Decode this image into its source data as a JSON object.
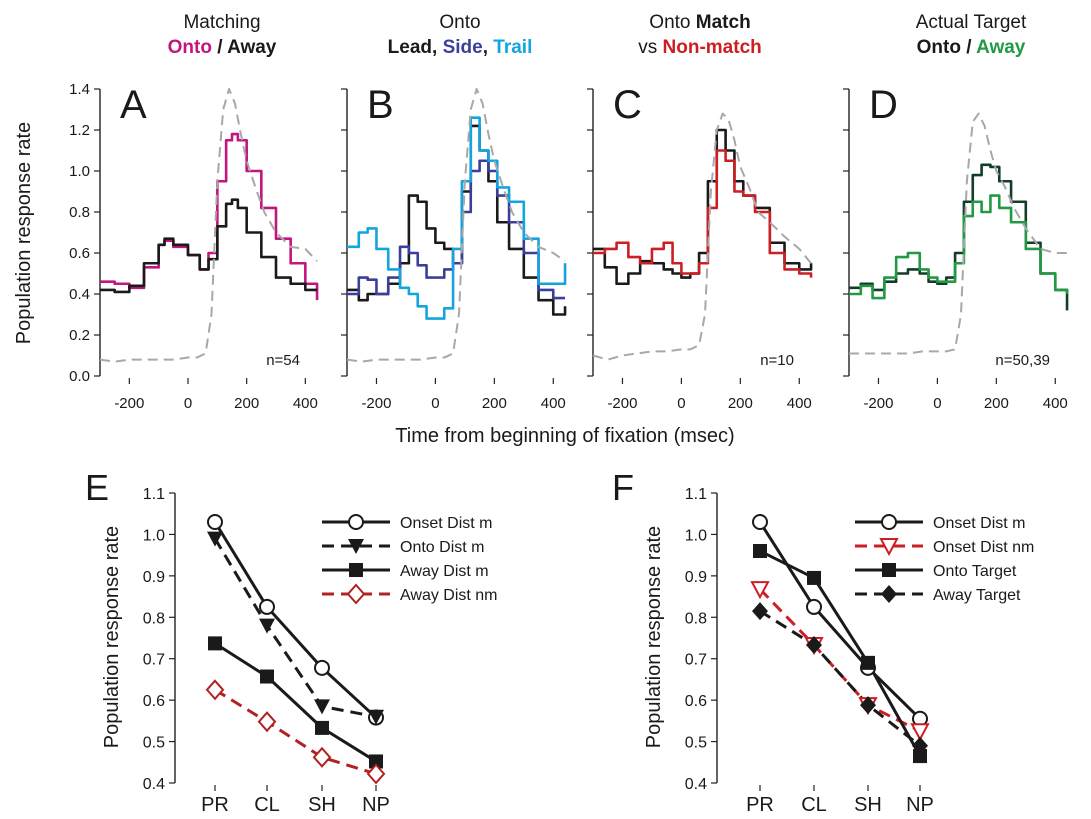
{
  "shared": {
    "xlabel": "Time from beginning of fixation (msec)",
    "ylabel_top": "Population response rate",
    "top_yticks": [
      "0.0",
      "0.2",
      "0.4",
      "0.6",
      "0.8",
      "1.0",
      "1.2",
      "1.4"
    ],
    "top_xticks": [
      "-200",
      "0",
      "200",
      "400"
    ],
    "ylabel_bottom": "Population response rate",
    "bottom_yticks": [
      "0.4",
      "0.5",
      "0.6",
      "0.7",
      "0.8",
      "0.9",
      "1.0",
      "1.1"
    ]
  },
  "panels": [
    {
      "letter": "A",
      "title_line1": "Matching",
      "parts": [
        {
          "text": "Onto",
          "color": "#c2157e"
        },
        {
          "text": " / ",
          "color": "#1a1a1a"
        },
        {
          "text": "Away",
          "color": "#1a1a1a"
        }
      ],
      "n_label": "n=54"
    },
    {
      "letter": "B",
      "title_line1": "Onto",
      "parts": [
        {
          "text": "Lead",
          "color": "#1a1a1a"
        },
        {
          "text": ", ",
          "color": "#1a1a1a"
        },
        {
          "text": "Side",
          "color": "#3a3f9a"
        },
        {
          "text": ", ",
          "color": "#1a1a1a"
        },
        {
          "text": "Trail",
          "color": "#14a5e0"
        }
      ],
      "n_label": ""
    },
    {
      "letter": "C",
      "title_line1_plain": "Onto ",
      "title_line1_bold": "Match",
      "title_line2_plain": "vs ",
      "parts": [
        {
          "text": "Non-match",
          "color": "#cc1f24"
        }
      ],
      "n_label": "n=10"
    },
    {
      "letter": "D",
      "title_line1": "Actual Target",
      "parts": [
        {
          "text": "Onto /",
          "color": "#1a1a1a"
        },
        {
          "text": "  Away",
          "color": "#229944"
        }
      ],
      "n_label": "n=50,39"
    }
  ],
  "chart_data": [
    {
      "type": "line",
      "panel": "A",
      "xlim": [
        -300,
        450
      ],
      "ylim": [
        0,
        1.4
      ],
      "xlabel": "Time from beginning of fixation (msec)",
      "ylabel": "Population response rate",
      "series": [
        {
          "name": "Onto",
          "color": "#c2157e",
          "style": "step",
          "x": [
            -300,
            -250,
            -200,
            -150,
            -100,
            -80,
            -50,
            0,
            40,
            70,
            100,
            130,
            150,
            170,
            200,
            250,
            300,
            350,
            400,
            440
          ],
          "y": [
            0.46,
            0.45,
            0.43,
            0.53,
            0.64,
            0.66,
            0.63,
            0.59,
            0.52,
            0.6,
            0.95,
            1.15,
            1.18,
            1.15,
            1.0,
            0.82,
            0.67,
            0.55,
            0.45,
            0.37
          ]
        },
        {
          "name": "Away",
          "color": "#1a1a1a",
          "style": "step",
          "x": [
            -300,
            -250,
            -200,
            -150,
            -100,
            -80,
            -50,
            0,
            40,
            70,
            100,
            130,
            150,
            170,
            200,
            250,
            300,
            350,
            400,
            440
          ],
          "y": [
            0.42,
            0.41,
            0.44,
            0.55,
            0.64,
            0.67,
            0.64,
            0.59,
            0.52,
            0.57,
            0.73,
            0.84,
            0.86,
            0.82,
            0.7,
            0.58,
            0.48,
            0.45,
            0.42,
            0.42
          ]
        },
        {
          "name": "",
          "color": "#a8a8a8",
          "style": "dashed",
          "x": [
            -300,
            -250,
            -200,
            -150,
            -100,
            -50,
            0,
            30,
            60,
            80,
            100,
            120,
            140,
            160,
            180,
            200,
            230,
            260,
            300,
            350,
            400,
            440
          ],
          "y": [
            0.08,
            0.07,
            0.08,
            0.08,
            0.08,
            0.08,
            0.09,
            0.09,
            0.11,
            0.3,
            0.95,
            1.3,
            1.4,
            1.33,
            1.18,
            1.05,
            0.92,
            0.8,
            0.7,
            0.63,
            0.62,
            0.56
          ]
        }
      ]
    },
    {
      "type": "line",
      "panel": "B",
      "xlim": [
        -300,
        450
      ],
      "ylim": [
        0,
        1.4
      ],
      "xlabel": "Time from beginning of fixation (msec)",
      "ylabel": "Population response rate",
      "series": [
        {
          "name": "Lead",
          "color": "#1a1a1a",
          "style": "step",
          "x": [
            -300,
            -260,
            -230,
            -200,
            -160,
            -120,
            -90,
            -60,
            -30,
            0,
            30,
            60,
            90,
            120,
            150,
            180,
            210,
            250,
            300,
            350,
            400,
            440
          ],
          "y": [
            0.42,
            0.37,
            0.4,
            0.4,
            0.45,
            0.55,
            0.88,
            0.85,
            0.72,
            0.65,
            0.62,
            0.55,
            0.9,
            1.22,
            1.1,
            0.95,
            0.75,
            0.62,
            0.48,
            0.37,
            0.3,
            0.34
          ]
        },
        {
          "name": "Side",
          "color": "#3a3f9a",
          "style": "step",
          "x": [
            -300,
            -260,
            -230,
            -200,
            -160,
            -120,
            -90,
            -60,
            -30,
            0,
            30,
            60,
            90,
            120,
            150,
            180,
            210,
            250,
            300,
            350,
            400,
            440
          ],
          "y": [
            0.4,
            0.48,
            0.47,
            0.4,
            0.48,
            0.63,
            0.6,
            0.54,
            0.48,
            0.48,
            0.52,
            0.55,
            0.8,
            1.0,
            1.05,
            1.0,
            0.88,
            0.75,
            0.6,
            0.42,
            0.38,
            0.38
          ]
        },
        {
          "name": "Trail",
          "color": "#14a5e0",
          "style": "step",
          "x": [
            -300,
            -260,
            -230,
            -200,
            -160,
            -120,
            -90,
            -60,
            -30,
            0,
            30,
            60,
            90,
            120,
            150,
            180,
            210,
            250,
            300,
            350,
            400,
            440
          ],
          "y": [
            0.63,
            0.7,
            0.72,
            0.62,
            0.52,
            0.43,
            0.4,
            0.34,
            0.28,
            0.28,
            0.33,
            0.62,
            0.95,
            1.26,
            1.1,
            1.05,
            0.92,
            0.85,
            0.67,
            0.45,
            0.45,
            0.55
          ]
        },
        {
          "name": "",
          "color": "#a8a8a8",
          "style": "dashed",
          "x": [
            -300,
            -250,
            -200,
            -150,
            -100,
            -50,
            0,
            30,
            60,
            80,
            100,
            120,
            140,
            160,
            180,
            200,
            230,
            260,
            300,
            350,
            400,
            440
          ],
          "y": [
            0.08,
            0.07,
            0.08,
            0.08,
            0.08,
            0.08,
            0.09,
            0.09,
            0.11,
            0.3,
            0.95,
            1.3,
            1.4,
            1.33,
            1.18,
            1.05,
            0.92,
            0.8,
            0.7,
            0.63,
            0.6,
            0.56
          ]
        }
      ]
    },
    {
      "type": "line",
      "panel": "C",
      "xlim": [
        -300,
        450
      ],
      "ylim": [
        0,
        1.4
      ],
      "xlabel": "Time from beginning of fixation (msec)",
      "ylabel": "Population response rate",
      "series": [
        {
          "name": "Match",
          "color": "#1a1a1a",
          "style": "step",
          "x": [
            -300,
            -260,
            -220,
            -180,
            -140,
            -100,
            -60,
            -30,
            0,
            30,
            60,
            90,
            120,
            150,
            180,
            210,
            250,
            300,
            350,
            400,
            440
          ],
          "y": [
            0.62,
            0.53,
            0.45,
            0.5,
            0.56,
            0.55,
            0.52,
            0.5,
            0.48,
            0.5,
            0.6,
            0.95,
            1.2,
            1.1,
            0.95,
            0.88,
            0.82,
            0.65,
            0.55,
            0.52,
            0.55
          ]
        },
        {
          "name": "Non-match",
          "color": "#cc1f24",
          "style": "step",
          "x": [
            -300,
            -260,
            -220,
            -180,
            -140,
            -100,
            -60,
            -30,
            0,
            30,
            60,
            90,
            120,
            150,
            180,
            210,
            250,
            300,
            350,
            400,
            440
          ],
          "y": [
            0.6,
            0.62,
            0.65,
            0.58,
            0.55,
            0.62,
            0.65,
            0.55,
            0.5,
            0.5,
            0.55,
            0.82,
            1.1,
            1.05,
            0.9,
            0.88,
            0.8,
            0.6,
            0.52,
            0.5,
            0.48
          ]
        },
        {
          "name": "",
          "color": "#a8a8a8",
          "style": "dashed",
          "x": [
            -300,
            -250,
            -200,
            -150,
            -100,
            -50,
            0,
            30,
            60,
            80,
            100,
            120,
            140,
            160,
            180,
            200,
            230,
            260,
            300,
            350,
            400,
            440
          ],
          "y": [
            0.1,
            0.08,
            0.1,
            0.11,
            0.12,
            0.12,
            0.13,
            0.13,
            0.15,
            0.3,
            0.9,
            1.2,
            1.28,
            1.25,
            1.15,
            1.02,
            0.92,
            0.8,
            0.75,
            0.68,
            0.62,
            0.55
          ]
        }
      ]
    },
    {
      "type": "line",
      "panel": "D",
      "xlim": [
        -300,
        450
      ],
      "ylim": [
        0,
        1.4
      ],
      "xlabel": "Time from beginning of fixation (msec)",
      "ylabel": "Population response rate",
      "series": [
        {
          "name": "Onto",
          "color": "#143d28",
          "style": "step",
          "x": [
            -300,
            -260,
            -220,
            -180,
            -140,
            -100,
            -60,
            -30,
            0,
            30,
            60,
            90,
            120,
            150,
            180,
            210,
            250,
            300,
            350,
            400,
            440
          ],
          "y": [
            0.43,
            0.45,
            0.42,
            0.46,
            0.5,
            0.52,
            0.5,
            0.46,
            0.45,
            0.48,
            0.6,
            0.85,
            0.98,
            1.03,
            1.02,
            0.95,
            0.85,
            0.65,
            0.5,
            0.42,
            0.32
          ]
        },
        {
          "name": "Away",
          "color": "#229944",
          "style": "step",
          "x": [
            -300,
            -260,
            -220,
            -180,
            -140,
            -100,
            -60,
            -30,
            0,
            30,
            60,
            90,
            120,
            150,
            180,
            210,
            250,
            300,
            350,
            400,
            440
          ],
          "y": [
            0.4,
            0.44,
            0.38,
            0.48,
            0.58,
            0.6,
            0.52,
            0.48,
            0.46,
            0.46,
            0.55,
            0.78,
            0.85,
            0.8,
            0.88,
            0.82,
            0.75,
            0.62,
            0.5,
            0.42,
            0.4
          ]
        },
        {
          "name": "",
          "color": "#a8a8a8",
          "style": "dashed",
          "x": [
            -300,
            -250,
            -200,
            -150,
            -100,
            -50,
            0,
            30,
            60,
            80,
            100,
            120,
            140,
            160,
            180,
            200,
            230,
            260,
            300,
            350,
            400,
            440
          ],
          "y": [
            0.11,
            0.11,
            0.11,
            0.11,
            0.11,
            0.12,
            0.12,
            0.12,
            0.13,
            0.3,
            0.95,
            1.24,
            1.28,
            1.22,
            1.1,
            1.0,
            0.92,
            0.82,
            0.72,
            0.62,
            0.6,
            0.6
          ]
        }
      ]
    },
    {
      "type": "line",
      "panel": "E",
      "categories": [
        "PR",
        "CL",
        "SH",
        "NP"
      ],
      "ylim": [
        0.4,
        1.1
      ],
      "ylabel": "Population response rate",
      "series": [
        {
          "name": "Onset Dist m",
          "color": "#1a1a1a",
          "dash": false,
          "marker": "circle-open",
          "values": [
            1.03,
            0.825,
            0.678,
            0.558
          ]
        },
        {
          "name": "Onto Dist m",
          "color": "#1a1a1a",
          "dash": true,
          "marker": "triangle-down",
          "values": [
            0.99,
            0.78,
            0.585,
            0.56
          ]
        },
        {
          "name": "Away Dist m",
          "color": "#1a1a1a",
          "dash": false,
          "marker": "square",
          "values": [
            0.737,
            0.657,
            0.533,
            0.452
          ]
        },
        {
          "name": "Away Dist nm",
          "color": "#b22222",
          "dash": true,
          "marker": "diamond-open",
          "values": [
            0.625,
            0.548,
            0.462,
            0.422
          ]
        }
      ]
    },
    {
      "type": "line",
      "panel": "F",
      "categories": [
        "PR",
        "CL",
        "SH",
        "NP"
      ],
      "ylim": [
        0.4,
        1.1
      ],
      "ylabel": "Population response rate",
      "series": [
        {
          "name": "Onset Dist m",
          "color": "#1a1a1a",
          "dash": false,
          "marker": "circle-open",
          "values": [
            1.03,
            0.825,
            0.678,
            0.555
          ]
        },
        {
          "name": "Onset Dist nm",
          "color": "#cc1f24",
          "dash": true,
          "marker": "triangle-down-open",
          "values": [
            0.868,
            0.733,
            0.588,
            0.525
          ]
        },
        {
          "name": "Onto Target",
          "color": "#1a1a1a",
          "dash": false,
          "marker": "square",
          "values": [
            0.96,
            0.895,
            0.69,
            0.465
          ]
        },
        {
          "name": "Away Target",
          "color": "#1a1a1a",
          "dash": true,
          "marker": "diamond",
          "values": [
            0.815,
            0.733,
            0.588,
            0.49
          ]
        }
      ]
    }
  ]
}
